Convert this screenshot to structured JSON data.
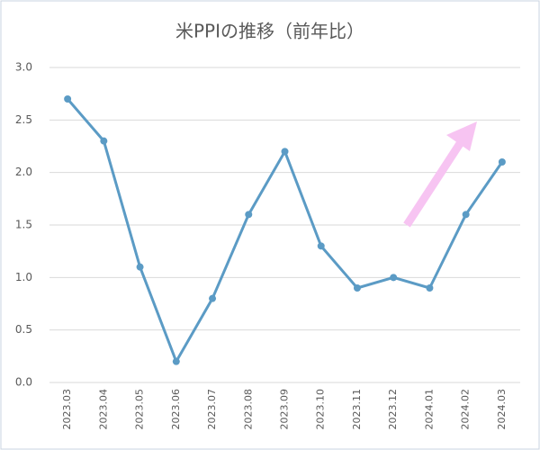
{
  "chart_data": {
    "type": "line",
    "title": "米PPIの推移（前年比）",
    "categories": [
      "2023.03",
      "2023.04",
      "2023.05",
      "2023.06",
      "2023.07",
      "2023.08",
      "2023.09",
      "2023.10",
      "2023.11",
      "2023.12",
      "2024.01",
      "2024.02",
      "2024.03"
    ],
    "values": [
      2.7,
      2.3,
      1.1,
      0.2,
      0.8,
      1.6,
      2.2,
      1.3,
      0.9,
      1.0,
      0.9,
      1.6,
      2.1
    ],
    "color": "#5b9bc5",
    "ylim": [
      0,
      3
    ],
    "yticks": [
      {
        "value": 0,
        "label": "0.0"
      },
      0.5,
      {
        "value": 1,
        "label": "1.0"
      },
      1.5,
      {
        "value": 2,
        "label": "2.0"
      },
      2.5,
      {
        "value": 3,
        "label": "3.0"
      }
    ],
    "grid": true
  }
}
